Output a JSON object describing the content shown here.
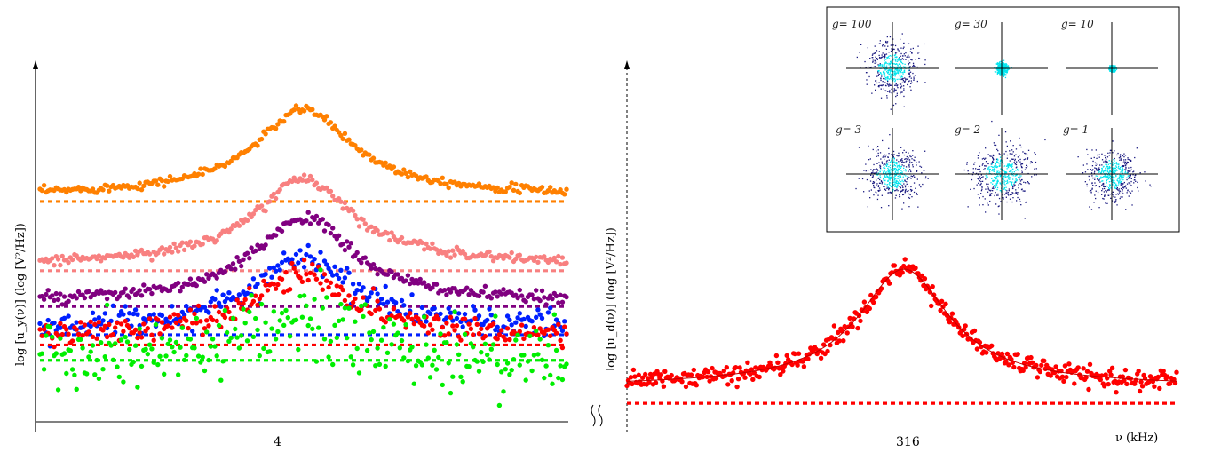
{
  "chart_data": [
    {
      "type": "scatter",
      "panel": "left",
      "ylabel": "log [u_y(ν)] (log [V²/Hz])",
      "xtick": "4",
      "series": [
        {
          "color": "#ff8000",
          "peak": 0.92,
          "base": 0.6,
          "noise": 0.008,
          "baseline": 0.56,
          "tilt": 0.0
        },
        {
          "color": "#f88080",
          "peak": 0.65,
          "base": 0.33,
          "noise": 0.01,
          "baseline": 0.29,
          "tilt": 0.0
        },
        {
          "color": "#800080",
          "peak": 0.5,
          "base": 0.18,
          "noise": 0.012,
          "baseline": 0.15,
          "tilt": 0.0
        },
        {
          "color": "#0020ff",
          "peak": 0.35,
          "base": 0.08,
          "noise": 0.025,
          "baseline": 0.04,
          "tilt": 0.0
        },
        {
          "color": "#ff0000",
          "peak": 0.28,
          "base": 0.05,
          "noise": 0.025,
          "baseline": 0.0,
          "tilt": 0.0
        },
        {
          "color": "#00ee00",
          "peak": 0.1,
          "base": -0.05,
          "noise": 0.07,
          "baseline": -0.06,
          "tilt": 0.0
        }
      ]
    },
    {
      "type": "scatter",
      "panel": "right",
      "ylabel": "log [u_d(ν)] (log [V²/Hz])",
      "xtick": "316",
      "xlabel": "ν  (kHz)",
      "series": [
        {
          "color": "#ff0000",
          "peak": 0.95,
          "base": 0.14,
          "noise": 0.035,
          "baseline": 0.0,
          "tilt": 0.0
        }
      ]
    }
  ],
  "inset": {
    "labels": [
      "g= 100",
      "g= 30",
      "g= 10",
      "g= 3",
      "g= 2",
      "g= 1"
    ],
    "spreads": [
      0.55,
      0.12,
      0.06,
      0.55,
      0.65,
      0.55
    ]
  },
  "colors": {
    "cyan": "#00e5ee",
    "navy": "#1a1a80"
  }
}
